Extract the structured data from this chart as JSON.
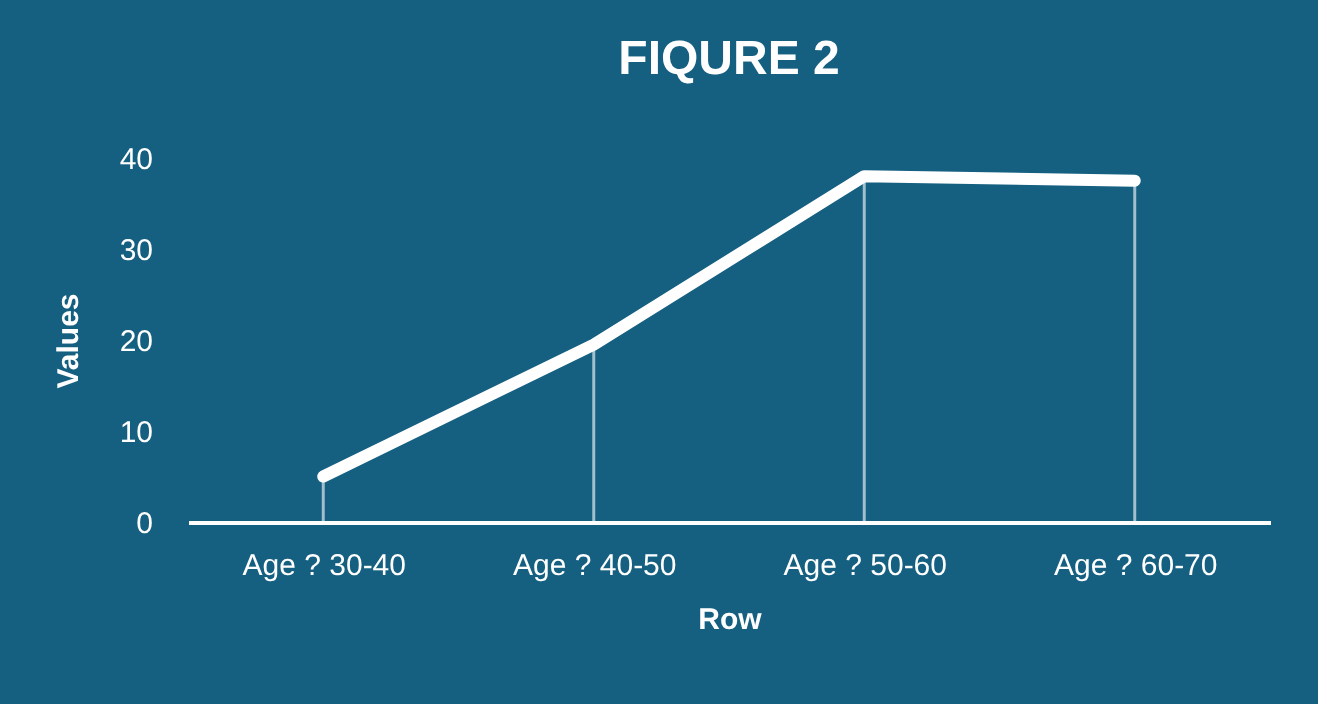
{
  "chart_data": {
    "type": "line",
    "title": "FIQURE 2",
    "xlabel": "Row",
    "ylabel": "Values",
    "categories": [
      "Age ? 30-40",
      "Age ? 40-50",
      "Age ? 50-60",
      "Age ? 60-70"
    ],
    "series": [
      {
        "color": "#ffffff",
        "values": [
          5,
          19.5,
          38,
          37.5
        ]
      }
    ],
    "ylim": [
      0,
      40
    ],
    "yticks": [
      0,
      10,
      20,
      30,
      40
    ],
    "grid": "x",
    "marker": "none",
    "line_style": "solid"
  }
}
